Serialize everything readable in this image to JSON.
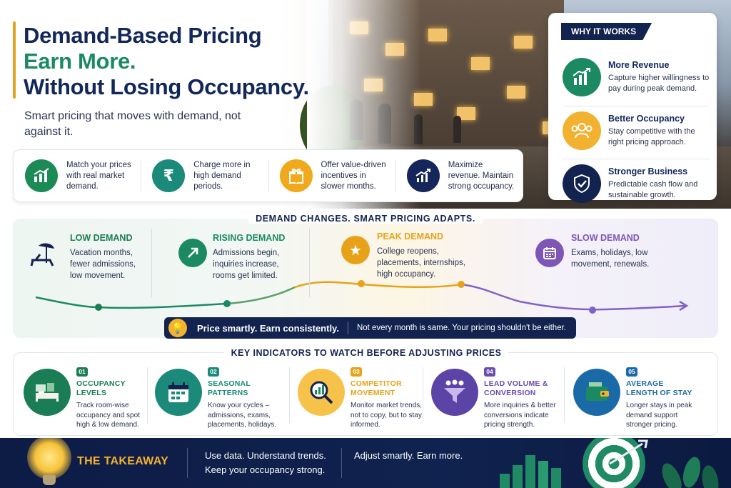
{
  "header": {
    "title_line1": "Demand-Based Pricing",
    "title_line2": "Earn More.",
    "title_line3": "Without Losing Occupancy.",
    "subtitle": "Smart pricing that moves with demand, not against it."
  },
  "features": [
    {
      "text": "Match your prices with real market demand.",
      "icon": "chart-growth-icon",
      "color": "#1b8a55"
    },
    {
      "text": "Charge more in high demand periods.",
      "icon": "rupee-icon",
      "color": "#1b8a7a"
    },
    {
      "text": "Offer value-driven incentives in slower months.",
      "icon": "gift-icon",
      "color": "#f0a81c"
    },
    {
      "text": "Maximize revenue. Maintain strong occupancy.",
      "icon": "chart-up-icon",
      "color": "#15275a"
    }
  ],
  "why": {
    "tag": "WHY IT WORKS",
    "items": [
      {
        "title": "More Revenue",
        "desc": "Capture higher willingness to pay during peak demand.",
        "icon": "revenue-chart-icon",
        "color": "#1b8a62"
      },
      {
        "title": "Better Occupancy",
        "desc": "Stay competitive with the right pricing approach.",
        "icon": "people-icon",
        "color": "#f2b230"
      },
      {
        "title": "Stronger Business",
        "desc": "Predictable cash flow and sustainable growth.",
        "icon": "shield-check-icon",
        "color": "#13234f"
      }
    ]
  },
  "demand": {
    "title": "DEMAND CHANGES. SMART PRICING ADAPTS.",
    "phases": [
      {
        "title": "LOW DEMAND",
        "desc": "Vacation months, fewer admissions, low movement.",
        "icon": "beach-chair-icon",
        "color": "#1b7d55"
      },
      {
        "title": "RISING DEMAND",
        "desc": "Admissions begin, inquiries increase, rooms get limited.",
        "icon": "arrow-up-right-icon",
        "color": "#1b8a62"
      },
      {
        "title": "PEAK DEMAND",
        "desc": "College reopens, placements, internships, high occupancy.",
        "icon": "star-icon",
        "color": "#e8a21a"
      },
      {
        "title": "SLOW DEMAND",
        "desc": "Exams, holidays, low movement, renewals.",
        "icon": "calendar-icon",
        "color": "#7d56b8"
      }
    ],
    "pill_bold": "Price smartly. Earn consistently.",
    "pill_text": "Not every month is same. Your pricing shouldn't be either."
  },
  "indicators": {
    "title": "KEY INDICATORS TO WATCH BEFORE ADJUSTING PRICES",
    "items": [
      {
        "num": "01",
        "title": "OCCUPANCY LEVELS",
        "desc": "Track room-wise occupancy and spot high & low demand.",
        "icon": "bedroom-icon",
        "color": "#1b7d55"
      },
      {
        "num": "02",
        "title": "SEASONAL PATTERNS",
        "desc": "Know your cycles – admissions, exams, placements, holidays.",
        "icon": "calendar-icon",
        "color": "#1b8a7a"
      },
      {
        "num": "03",
        "title": "COMPETITOR MOVEMENT",
        "desc": "Monitor market trends, not to copy, but to stay informed.",
        "icon": "magnifier-chart-icon",
        "color": "#e8a21a"
      },
      {
        "num": "04",
        "title": "LEAD VOLUME & CONVERSION",
        "desc": "More inquiries & better conversions indicate pricing strength.",
        "icon": "funnel-icon",
        "color": "#6b4bb0"
      },
      {
        "num": "05",
        "title": "AVERAGE LENGTH OF STAY",
        "desc": "Longer stays in peak demand support stronger pricing.",
        "icon": "wallet-icon",
        "color": "#1b6aa8"
      }
    ]
  },
  "footer": {
    "takeaway": "THE TAKEAWAY",
    "line1a": "Use data. Understand trends.",
    "line1b": "Keep your occupancy strong.",
    "line2": "Adjust smartly. Earn more."
  }
}
